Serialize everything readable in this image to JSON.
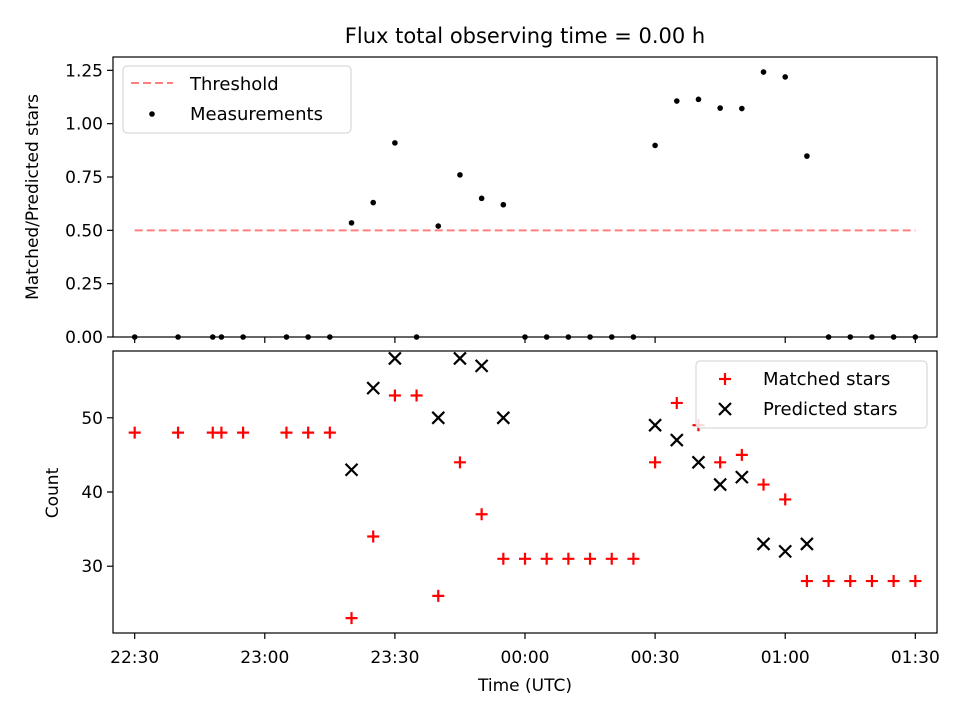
{
  "chart_data": [
    {
      "type": "scatter",
      "title": "Flux total observing time = 0.00 h",
      "xlabel": "",
      "ylabel": "Matched/Predicted stars",
      "xlim": [
        "22:25",
        "01:35"
      ],
      "ylim": [
        0,
        1.3125
      ],
      "yticks": [
        0,
        0.25,
        0.5,
        0.75,
        1.0,
        1.25
      ],
      "ytick_labels": [
        "0.00",
        "0.25",
        "0.50",
        "0.75",
        "1.00",
        "1.25"
      ],
      "legend_position": "upper left",
      "threshold": {
        "name": "Threshold",
        "x": [
          "22:30",
          "01:30"
        ],
        "y": 0.5,
        "color": "#ff7f7f",
        "style": "dashed"
      },
      "series": [
        {
          "name": "Measurements",
          "color": "#000000",
          "marker": "dot",
          "x": [
            "22:30",
            "22:40",
            "22:48",
            "22:50",
            "22:55",
            "23:05",
            "23:10",
            "23:15",
            "23:20",
            "23:25",
            "23:30",
            "23:35",
            "23:40",
            "23:45",
            "23:50",
            "23:55",
            "00:00",
            "00:05",
            "00:10",
            "00:15",
            "00:20",
            "00:25",
            "00:30",
            "00:35",
            "00:40",
            "00:45",
            "00:50",
            "00:55",
            "01:00",
            "01:05",
            "01:10",
            "01:15",
            "01:20",
            "01:25",
            "01:30"
          ],
          "y": [
            0,
            0,
            0,
            0,
            0,
            0,
            0,
            0,
            0.535,
            0.63,
            0.91,
            0,
            0.52,
            0.76,
            0.65,
            0.62,
            0,
            0,
            0,
            0,
            0,
            0,
            0.898,
            1.106,
            1.114,
            1.073,
            1.071,
            1.242,
            1.219,
            0.848,
            0,
            0,
            0,
            0,
            0
          ]
        }
      ]
    },
    {
      "type": "scatter",
      "title": "",
      "xlabel": "Time (UTC)",
      "ylabel": "Count",
      "xlim": [
        "22:25",
        "01:35"
      ],
      "ylim": [
        21,
        59
      ],
      "xticks": [
        "22:30",
        "23:00",
        "23:30",
        "00:00",
        "00:30",
        "01:00",
        "01:30"
      ],
      "yticks": [
        30,
        40,
        50
      ],
      "legend_position": "upper right",
      "series": [
        {
          "name": "Matched stars",
          "color": "#ff0000",
          "marker": "plus",
          "x": [
            "22:30",
            "22:40",
            "22:48",
            "22:50",
            "22:55",
            "23:05",
            "23:10",
            "23:15",
            "23:20",
            "23:25",
            "23:30",
            "23:35",
            "23:40",
            "23:45",
            "23:50",
            "23:55",
            "00:00",
            "00:05",
            "00:10",
            "00:15",
            "00:20",
            "00:25",
            "00:30",
            "00:35",
            "00:40",
            "00:45",
            "00:50",
            "00:55",
            "01:00",
            "01:05",
            "01:10",
            "01:15",
            "01:20",
            "01:25",
            "01:30"
          ],
          "y": [
            48,
            48,
            48,
            48,
            48,
            48,
            48,
            48,
            23,
            34,
            53,
            53,
            26,
            44,
            37,
            31,
            31,
            31,
            31,
            31,
            31,
            31,
            44,
            52,
            49,
            44,
            45,
            41,
            39,
            28,
            28,
            28,
            28,
            28,
            28
          ]
        },
        {
          "name": "Predicted stars",
          "color": "#000000",
          "marker": "x",
          "x": [
            "23:20",
            "23:25",
            "23:30",
            "23:40",
            "23:45",
            "23:50",
            "23:55",
            "00:30",
            "00:35",
            "00:40",
            "00:45",
            "00:50",
            "00:55",
            "01:00",
            "01:05"
          ],
          "y": [
            43,
            54,
            58,
            50,
            58,
            57,
            50,
            49,
            47,
            44,
            41,
            42,
            33,
            32,
            33
          ]
        }
      ]
    }
  ]
}
